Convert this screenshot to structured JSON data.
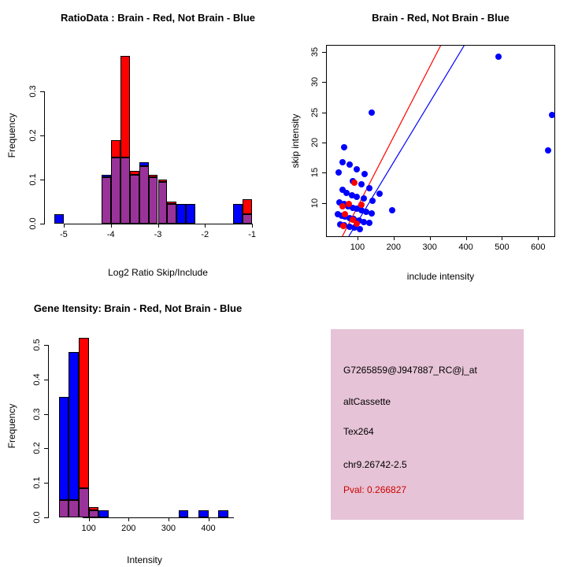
{
  "figure": {
    "background": "#ffffff"
  },
  "chart_data": [
    {
      "id": "ratio_hist",
      "type": "bar",
      "title": "RatioData : Brain - Red, Not Brain - Blue",
      "xlabel": "Log2 Ratio Skip/Include",
      "ylabel": "Frequency",
      "xlim": [
        -5.4,
        -0.6
      ],
      "ylim": [
        0,
        0.4
      ],
      "xticks": [
        -5,
        -4,
        -3,
        -2,
        -1
      ],
      "yticks": [
        0,
        0.1,
        0.2,
        0.3
      ],
      "ytick_decimals": 1,
      "grid": false,
      "colors": {
        "red": "#ff0000",
        "blue": "#0000ff",
        "overlap": "#993399"
      },
      "bins": [
        {
          "x0": -5.2,
          "x1": -5.0,
          "red": 0,
          "blue": 0.022
        },
        {
          "x0": -4.2,
          "x1": -4.0,
          "red": 0.105,
          "blue": 0.11
        },
        {
          "x0": -4.0,
          "x1": -3.8,
          "red": 0.19,
          "blue": 0.15
        },
        {
          "x0": -3.8,
          "x1": -3.6,
          "red": 0.38,
          "blue": 0.15
        },
        {
          "x0": -3.6,
          "x1": -3.4,
          "red": 0.12,
          "blue": 0.11
        },
        {
          "x0": -3.4,
          "x1": -3.2,
          "red": 0.13,
          "blue": 0.14
        },
        {
          "x0": -3.2,
          "x1": -3.0,
          "red": 0.11,
          "blue": 0.105
        },
        {
          "x0": -3.0,
          "x1": -2.8,
          "red": 0.1,
          "blue": 0.095
        },
        {
          "x0": -2.8,
          "x1": -2.6,
          "red": 0.05,
          "blue": 0.045
        },
        {
          "x0": -2.6,
          "x1": -2.4,
          "red": 0,
          "blue": 0.045
        },
        {
          "x0": -2.4,
          "x1": -2.2,
          "red": 0,
          "blue": 0.045
        },
        {
          "x0": -1.4,
          "x1": -1.2,
          "red": 0,
          "blue": 0.045
        },
        {
          "x0": -1.2,
          "x1": -1.0,
          "red": 0.055,
          "blue": 0.022
        }
      ]
    },
    {
      "id": "scatter",
      "type": "scatter",
      "title": "Brain - Red, Not Brain - Blue",
      "xlabel": "include intensity",
      "ylabel": "skip intensity",
      "xlim": [
        15,
        645
      ],
      "ylim": [
        4.5,
        36
      ],
      "xticks": [
        100,
        200,
        300,
        400,
        500,
        600
      ],
      "yticks": [
        10,
        15,
        20,
        25,
        30,
        35
      ],
      "grid": false,
      "legend_note": "Brain - Red, Not Brain - Blue",
      "series": [
        {
          "name": "Not Brain",
          "color": "#0000ff",
          "points": [
            [
              490,
              34.2
            ],
            [
              638,
              24.6
            ],
            [
              628,
              18.7
            ],
            [
              140,
              25.0
            ],
            [
              62,
              19.2
            ],
            [
              58,
              16.8
            ],
            [
              78,
              16.3
            ],
            [
              97,
              15.5
            ],
            [
              48,
              15.1
            ],
            [
              120,
              14.8
            ],
            [
              88,
              13.6
            ],
            [
              112,
              13.1
            ],
            [
              132,
              12.5
            ],
            [
              58,
              12.2
            ],
            [
              70,
              11.7
            ],
            [
              84,
              11.3
            ],
            [
              98,
              11.0
            ],
            [
              118,
              10.7
            ],
            [
              142,
              10.4
            ],
            [
              162,
              11.5
            ],
            [
              50,
              10.1
            ],
            [
              62,
              9.8
            ],
            [
              74,
              9.5
            ],
            [
              86,
              9.2
            ],
            [
              98,
              9.0
            ],
            [
              110,
              8.8
            ],
            [
              124,
              8.6
            ],
            [
              140,
              8.3
            ],
            [
              46,
              8.1
            ],
            [
              56,
              7.9
            ],
            [
              66,
              7.7
            ],
            [
              78,
              7.5
            ],
            [
              90,
              7.3
            ],
            [
              104,
              7.1
            ],
            [
              118,
              6.9
            ],
            [
              132,
              6.7
            ],
            [
              52,
              6.5
            ],
            [
              64,
              6.3
            ],
            [
              78,
              6.1
            ],
            [
              92,
              5.9
            ],
            [
              106,
              5.7
            ],
            [
              195,
              8.8
            ]
          ]
        },
        {
          "name": "Brain",
          "color": "#ff0000",
          "points": [
            [
              92,
              13.3
            ],
            [
              76,
              9.9
            ],
            [
              58,
              9.4
            ],
            [
              112,
              9.7
            ],
            [
              66,
              8.1
            ],
            [
              86,
              7.2
            ],
            [
              98,
              6.6
            ],
            [
              60,
              6.2
            ]
          ]
        }
      ],
      "lines": [
        {
          "color": "#ff0000",
          "x1": 58,
          "y1": 4.5,
          "x2": 330,
          "y2": 36
        },
        {
          "color": "#0000ff",
          "x1": 76,
          "y1": 4.5,
          "x2": 395,
          "y2": 36
        }
      ]
    },
    {
      "id": "gene_hist",
      "type": "bar",
      "title": "Gene Itensity: Brain - Red, Not Brain - Blue",
      "xlabel": "Intensity",
      "ylabel": "Frequency",
      "xlim": [
        0,
        480
      ],
      "ylim": [
        0,
        0.53
      ],
      "xticks": [
        100,
        200,
        300,
        400
      ],
      "yticks": [
        0,
        0.1,
        0.2,
        0.3,
        0.4,
        0.5
      ],
      "ytick_decimals": 1,
      "grid": false,
      "colors": {
        "red": "#ff0000",
        "blue": "#0000ff",
        "overlap": "#993399"
      },
      "bins": [
        {
          "x0": 25,
          "x1": 50,
          "red": 0.05,
          "blue": 0.35
        },
        {
          "x0": 50,
          "x1": 75,
          "red": 0.05,
          "blue": 0.48
        },
        {
          "x0": 75,
          "x1": 100,
          "red": 0.52,
          "blue": 0.085
        },
        {
          "x0": 100,
          "x1": 125,
          "red": 0.03,
          "blue": 0.02
        },
        {
          "x0": 125,
          "x1": 150,
          "red": 0,
          "blue": 0.02
        },
        {
          "x0": 325,
          "x1": 350,
          "red": 0,
          "blue": 0.02
        },
        {
          "x0": 375,
          "x1": 400,
          "red": 0,
          "blue": 0.02
        },
        {
          "x0": 425,
          "x1": 450,
          "red": 0,
          "blue": 0.02
        }
      ]
    }
  ],
  "info_panel": {
    "background": "#e6c3d6",
    "text_color": "#000000",
    "pval_color": "#cc0000",
    "lines": [
      "G7265859@J947887_RC@j_at",
      "altCassette",
      "Tex264",
      "chr9.26742-2.5"
    ],
    "pval": "Pval: 0.266827"
  }
}
